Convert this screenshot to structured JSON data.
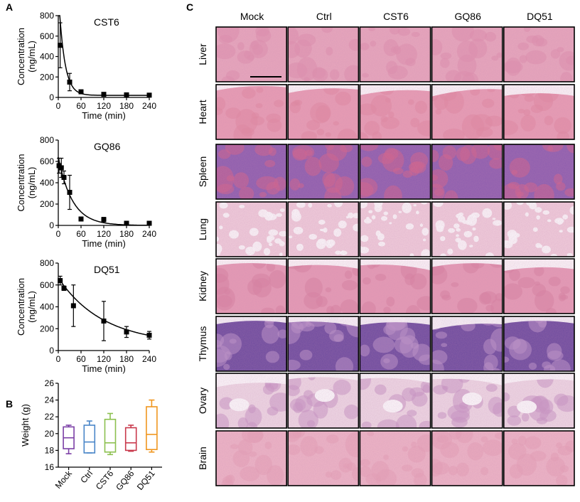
{
  "panels": {
    "a": "A",
    "b": "B",
    "c": "C"
  },
  "chart_data": [
    {
      "type": "scatter",
      "title": "CST6",
      "xlabel": "Time (min)",
      "ylabel": [
        "Concentration",
        "(ng/mL)"
      ],
      "xlim": [
        0,
        240
      ],
      "ylim": [
        0,
        800
      ],
      "xticks": [
        0,
        60,
        120,
        180,
        240
      ],
      "yticks": [
        0,
        200,
        400,
        600,
        800
      ],
      "points": [
        {
          "x": 5,
          "y": 510,
          "err": 220
        },
        {
          "x": 30,
          "y": 150,
          "err": 85
        },
        {
          "x": 60,
          "y": 55,
          "err": 15
        },
        {
          "x": 120,
          "y": 30,
          "err": 12
        },
        {
          "x": 180,
          "y": 25,
          "err": 10
        },
        {
          "x": 240,
          "y": 22,
          "err": 12
        }
      ],
      "fit": {
        "a": 1020,
        "k": 0.066,
        "c": 20,
        "x0": 0
      }
    },
    {
      "type": "scatter",
      "title": "GQ86",
      "xlabel": "Time (min)",
      "ylabel": [
        "Concentration",
        "(ng/mL)"
      ],
      "xlim": [
        0,
        240
      ],
      "ylim": [
        0,
        800
      ],
      "xticks": [
        0,
        60,
        120,
        180,
        240
      ],
      "yticks": [
        0,
        200,
        400,
        600,
        800
      ],
      "points": [
        {
          "x": 2,
          "y": 560,
          "err": 70
        },
        {
          "x": 8,
          "y": 540,
          "err": 90
        },
        {
          "x": 15,
          "y": 450,
          "err": 60
        },
        {
          "x": 30,
          "y": 310,
          "err": 160
        },
        {
          "x": 60,
          "y": 60,
          "err": 0
        },
        {
          "x": 120,
          "y": 55,
          "err": 20
        },
        {
          "x": 180,
          "y": 20,
          "err": 8
        },
        {
          "x": 240,
          "y": 20,
          "err": 8
        }
      ],
      "fit": {
        "a": 640,
        "k": 0.027,
        "c": 0,
        "x0": 0
      }
    },
    {
      "type": "scatter",
      "title": "DQ51",
      "xlabel": "Time (min)",
      "ylabel": [
        "Concentration",
        "(ng/mL)"
      ],
      "xlim": [
        0,
        240
      ],
      "ylim": [
        0,
        800
      ],
      "xticks": [
        0,
        60,
        120,
        180,
        240
      ],
      "yticks": [
        0,
        200,
        400,
        600,
        800
      ],
      "points": [
        {
          "x": 5,
          "y": 640,
          "err": 40
        },
        {
          "x": 15,
          "y": 570,
          "err": 20
        },
        {
          "x": 40,
          "y": 410,
          "err": 190
        },
        {
          "x": 120,
          "y": 270,
          "err": 180
        },
        {
          "x": 180,
          "y": 170,
          "err": 50
        },
        {
          "x": 240,
          "y": 140,
          "err": 35
        }
      ],
      "fit": {
        "a": 580,
        "k": 0.0085,
        "c": 60,
        "x0": 5
      }
    },
    {
      "type": "box",
      "ylabel": "Weight (g)",
      "ylim": [
        16,
        26
      ],
      "yticks": [
        16,
        18,
        20,
        22,
        24,
        26
      ],
      "categories": [
        "Mock",
        "Ctrl",
        "CST6",
        "GQ86",
        "DQ51"
      ],
      "colors": [
        "#7b3fa6",
        "#4a86c8",
        "#8cc04f",
        "#c8384b",
        "#f0961e"
      ],
      "boxes": [
        {
          "min": 17.6,
          "q1": 18.2,
          "median": 19.5,
          "q3": 20.8,
          "max": 21.0
        },
        {
          "min": 17.7,
          "q1": 17.7,
          "median": 19.0,
          "q3": 21.0,
          "max": 21.5
        },
        {
          "min": 17.5,
          "q1": 17.8,
          "median": 18.9,
          "q3": 21.7,
          "max": 22.4
        },
        {
          "min": 17.9,
          "q1": 18.0,
          "median": 18.9,
          "q3": 20.7,
          "max": 21.0
        },
        {
          "min": 17.8,
          "q1": 18.1,
          "median": 19.9,
          "q3": 23.2,
          "max": 24.0
        }
      ]
    },
    {
      "type": "image-grid",
      "columns": [
        "Mock",
        "Ctrl",
        "CST6",
        "GQ86",
        "DQ51"
      ],
      "rows": [
        "Liver",
        "Heart",
        "Spleen",
        "Lung",
        "Kidney",
        "Thymus",
        "Ovary",
        "Brain"
      ],
      "tissue_colors": {
        "Liver": {
          "base": "#e9a7bc",
          "alt": "#e08fab"
        },
        "Heart": {
          "base": "#ea9db3",
          "alt": "#e2889f"
        },
        "Spleen": {
          "base": "#8c5cae",
          "alt": "#d05e88"
        },
        "Lung": {
          "base": "#f2cfdc",
          "alt": "#e6a3bd"
        },
        "Kidney": {
          "base": "#e79bb4",
          "alt": "#d9829f"
        },
        "Thymus": {
          "base": "#6b4a9e",
          "alt": "#b892c8"
        },
        "Ovary": {
          "base": "#f0dbe6",
          "alt": "#c998c5"
        },
        "Brain": {
          "base": "#efb6c6",
          "alt": "#e7a2b6"
        }
      }
    }
  ]
}
